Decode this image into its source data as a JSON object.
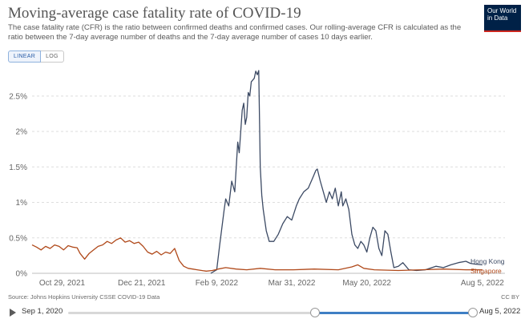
{
  "header": {
    "title": "Moving-average case fatality rate of COVID-19",
    "subtitle": "The case fatality rate (CFR) is the ratio between confirmed deaths and confirmed cases. Our rolling-average CFR is calculated as the ratio between the 7-day average number of deaths and the 7-day average number of cases 10 days earlier.",
    "logo_line1": "Our World",
    "logo_line2": "in Data"
  },
  "controls": {
    "linear_label": "LINEAR",
    "log_label": "LOG",
    "scale": "linear"
  },
  "footer": {
    "source": "Source: Johns Hopkins University CSSE COVID-19 Data",
    "license": "CC BY"
  },
  "timeline": {
    "start_label": "Sep 1, 2020",
    "end_label": "Aug 5, 2022",
    "selection_start_fraction": 0.61,
    "selection_end_fraction": 1.0
  },
  "colors": {
    "hong_kong": "#3c4a64",
    "singapore": "#b0491a",
    "grid": "#dddddd",
    "logo_bg": "#002147",
    "logo_accent": "#ce261e",
    "slider": "#3f7fc4"
  },
  "chart_data": {
    "type": "line",
    "title": "Moving-average case fatality rate of COVID-19",
    "xlabel": "",
    "ylabel": "",
    "ylim": [
      0,
      2.95
    ],
    "y_unit": "%",
    "y_ticks": [
      "0%",
      "0.5%",
      "1%",
      "1.5%",
      "2%",
      "2.5%"
    ],
    "y_tick_values": [
      0,
      0.5,
      1,
      1.5,
      2,
      2.5
    ],
    "x_range": [
      "2021-10-09",
      "2022-08-20"
    ],
    "x_tick_labels": [
      "Oct 29, 2021",
      "Dec 21, 2021",
      "Feb 9, 2022",
      "Mar 31, 2022",
      "May 20, 2022",
      "Aug 5, 2022"
    ],
    "x_tick_dates": [
      "2021-10-29",
      "2021-12-21",
      "2022-02-09",
      "2022-03-31",
      "2022-05-20",
      "2022-08-05"
    ],
    "grid": true,
    "legend": "end-of-line labels",
    "series": [
      {
        "name": "Hong Kong",
        "color": "#3c4a64",
        "points": [
          [
            "2022-02-05",
            0.0
          ],
          [
            "2022-02-09",
            0.05
          ],
          [
            "2022-02-11",
            0.4
          ],
          [
            "2022-02-14",
            0.9
          ],
          [
            "2022-02-15",
            1.05
          ],
          [
            "2022-02-17",
            0.95
          ],
          [
            "2022-02-19",
            1.3
          ],
          [
            "2022-02-21",
            1.15
          ],
          [
            "2022-02-23",
            1.85
          ],
          [
            "2022-02-24",
            1.7
          ],
          [
            "2022-02-26",
            2.3
          ],
          [
            "2022-02-27",
            2.4
          ],
          [
            "2022-02-28",
            2.1
          ],
          [
            "2022-03-01",
            2.2
          ],
          [
            "2022-03-02",
            2.55
          ],
          [
            "2022-03-03",
            2.5
          ],
          [
            "2022-03-04",
            2.7
          ],
          [
            "2022-03-06",
            2.75
          ],
          [
            "2022-03-07",
            2.85
          ],
          [
            "2022-03-08",
            2.8
          ],
          [
            "2022-03-09",
            2.86
          ],
          [
            "2022-03-10",
            1.5
          ],
          [
            "2022-03-11",
            1.1
          ],
          [
            "2022-03-12",
            0.9
          ],
          [
            "2022-03-14",
            0.6
          ],
          [
            "2022-03-16",
            0.45
          ],
          [
            "2022-03-19",
            0.45
          ],
          [
            "2022-03-22",
            0.55
          ],
          [
            "2022-03-25",
            0.7
          ],
          [
            "2022-03-28",
            0.8
          ],
          [
            "2022-03-31",
            0.75
          ],
          [
            "2022-04-03",
            0.95
          ],
          [
            "2022-04-05",
            1.05
          ],
          [
            "2022-04-08",
            1.15
          ],
          [
            "2022-04-11",
            1.2
          ],
          [
            "2022-04-14",
            1.35
          ],
          [
            "2022-04-16",
            1.45
          ],
          [
            "2022-04-17",
            1.47
          ],
          [
            "2022-04-19",
            1.3
          ],
          [
            "2022-04-21",
            1.15
          ],
          [
            "2022-04-23",
            1.0
          ],
          [
            "2022-04-25",
            1.15
          ],
          [
            "2022-04-27",
            1.05
          ],
          [
            "2022-04-29",
            1.2
          ],
          [
            "2022-05-01",
            0.95
          ],
          [
            "2022-05-03",
            1.15
          ],
          [
            "2022-05-04",
            0.95
          ],
          [
            "2022-05-06",
            1.05
          ],
          [
            "2022-05-08",
            0.9
          ],
          [
            "2022-05-10",
            0.55
          ],
          [
            "2022-05-12",
            0.4
          ],
          [
            "2022-05-14",
            0.35
          ],
          [
            "2022-05-16",
            0.45
          ],
          [
            "2022-05-18",
            0.4
          ],
          [
            "2022-05-20",
            0.3
          ],
          [
            "2022-05-22",
            0.5
          ],
          [
            "2022-05-24",
            0.65
          ],
          [
            "2022-05-26",
            0.6
          ],
          [
            "2022-05-28",
            0.35
          ],
          [
            "2022-05-30",
            0.25
          ],
          [
            "2022-06-01",
            0.6
          ],
          [
            "2022-06-03",
            0.55
          ],
          [
            "2022-06-05",
            0.3
          ],
          [
            "2022-06-07",
            0.08
          ],
          [
            "2022-06-10",
            0.1
          ],
          [
            "2022-06-13",
            0.15
          ],
          [
            "2022-06-17",
            0.05
          ],
          [
            "2022-06-22",
            0.04
          ],
          [
            "2022-06-28",
            0.05
          ],
          [
            "2022-07-05",
            0.1
          ],
          [
            "2022-07-10",
            0.08
          ],
          [
            "2022-07-15",
            0.12
          ],
          [
            "2022-07-20",
            0.15
          ],
          [
            "2022-07-25",
            0.17
          ],
          [
            "2022-07-28",
            0.14
          ],
          [
            "2022-07-31",
            0.13
          ],
          [
            "2022-08-05",
            0.12
          ]
        ]
      },
      {
        "name": "Singapore",
        "color": "#b0491a",
        "points": [
          [
            "2021-10-09",
            0.4
          ],
          [
            "2021-10-12",
            0.37
          ],
          [
            "2021-10-15",
            0.33
          ],
          [
            "2021-10-18",
            0.38
          ],
          [
            "2021-10-21",
            0.35
          ],
          [
            "2021-10-24",
            0.4
          ],
          [
            "2021-10-27",
            0.38
          ],
          [
            "2021-10-30",
            0.33
          ],
          [
            "2021-11-02",
            0.39
          ],
          [
            "2021-11-05",
            0.37
          ],
          [
            "2021-11-08",
            0.36
          ],
          [
            "2021-11-10",
            0.28
          ],
          [
            "2021-11-13",
            0.2
          ],
          [
            "2021-11-16",
            0.28
          ],
          [
            "2021-11-19",
            0.33
          ],
          [
            "2021-11-22",
            0.38
          ],
          [
            "2021-11-25",
            0.4
          ],
          [
            "2021-11-28",
            0.45
          ],
          [
            "2021-12-01",
            0.42
          ],
          [
            "2021-12-04",
            0.47
          ],
          [
            "2021-12-07",
            0.5
          ],
          [
            "2021-12-10",
            0.44
          ],
          [
            "2021-12-13",
            0.46
          ],
          [
            "2021-12-16",
            0.42
          ],
          [
            "2021-12-19",
            0.44
          ],
          [
            "2021-12-22",
            0.38
          ],
          [
            "2021-12-25",
            0.3
          ],
          [
            "2021-12-28",
            0.27
          ],
          [
            "2021-12-31",
            0.31
          ],
          [
            "2022-01-03",
            0.26
          ],
          [
            "2022-01-06",
            0.3
          ],
          [
            "2022-01-09",
            0.28
          ],
          [
            "2022-01-12",
            0.35
          ],
          [
            "2022-01-15",
            0.18
          ],
          [
            "2022-01-18",
            0.1
          ],
          [
            "2022-01-21",
            0.07
          ],
          [
            "2022-01-24",
            0.06
          ],
          [
            "2022-01-27",
            0.05
          ],
          [
            "2022-01-30",
            0.04
          ],
          [
            "2022-02-02",
            0.03
          ],
          [
            "2022-02-06",
            0.04
          ],
          [
            "2022-02-10",
            0.06
          ],
          [
            "2022-02-15",
            0.08
          ],
          [
            "2022-02-22",
            0.06
          ],
          [
            "2022-03-01",
            0.05
          ],
          [
            "2022-03-10",
            0.07
          ],
          [
            "2022-03-20",
            0.05
          ],
          [
            "2022-04-01",
            0.05
          ],
          [
            "2022-04-15",
            0.06
          ],
          [
            "2022-05-01",
            0.05
          ],
          [
            "2022-05-10",
            0.09
          ],
          [
            "2022-05-14",
            0.12
          ],
          [
            "2022-05-18",
            0.07
          ],
          [
            "2022-05-25",
            0.05
          ],
          [
            "2022-06-10",
            0.04
          ],
          [
            "2022-06-25",
            0.05
          ],
          [
            "2022-07-10",
            0.06
          ],
          [
            "2022-07-25",
            0.05
          ],
          [
            "2022-08-05",
            0.05
          ]
        ]
      }
    ]
  }
}
